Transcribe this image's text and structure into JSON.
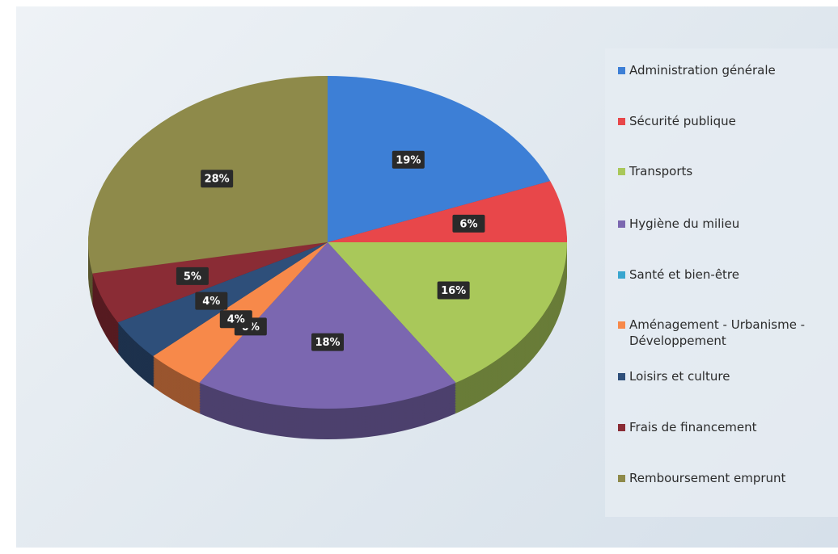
{
  "chart_data": {
    "type": "pie",
    "categories": [
      "Administration générale",
      "Sécurité publique",
      "Transports",
      "Hygiène du milieu",
      "Santé et bien-être",
      "Aménagement - Urbanisme - Développement",
      "Loisirs et culture",
      "Frais de financement",
      "Remboursement emprunt"
    ],
    "values": [
      19,
      6,
      16,
      18,
      0,
      4,
      4,
      5,
      28
    ],
    "value_labels": [
      "19%",
      "6%",
      "16%",
      "18%",
      "0%",
      "4%",
      "4%",
      "5%",
      "28%"
    ],
    "colors": [
      "#3d7fd6",
      "#e8474a",
      "#a9c85a",
      "#7b67b0",
      "#3aa6cf",
      "#f7894a",
      "#2e4f7a",
      "#8a2c35",
      "#8e8a4a"
    ],
    "legend": "right"
  }
}
